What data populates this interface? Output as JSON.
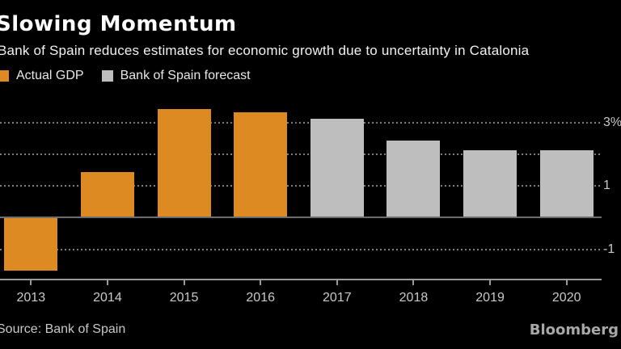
{
  "header": {
    "title": "Slowing Momentum",
    "subtitle": "Bank of Spain reduces estimates for economic growth due to uncertainty in Catalonia"
  },
  "legend": {
    "items": [
      {
        "label": "Actual GDP",
        "color": "#dc8a21"
      },
      {
        "label": "Bank of Spain forecast",
        "color": "#bebebe"
      }
    ]
  },
  "chart_data": {
    "type": "bar",
    "title": "Slowing Momentum",
    "subtitle": "Bank of Spain reduces estimates for economic growth due to uncertainty in Catalonia",
    "categories": [
      "2013",
      "2014",
      "2015",
      "2016",
      "2017",
      "2018",
      "2019",
      "2020"
    ],
    "series": [
      {
        "name": "Actual GDP",
        "color": "#dc8a21",
        "values": [
          -1.7,
          1.4,
          3.4,
          3.3,
          null,
          null,
          null,
          null
        ]
      },
      {
        "name": "Bank of Spain forecast",
        "color": "#bebebe",
        "values": [
          null,
          null,
          null,
          null,
          3.1,
          2.4,
          2.1,
          2.1
        ]
      }
    ],
    "unit": "percent",
    "ylim": [
      -2.2,
      3.8
    ],
    "yticks": [
      {
        "value": 3,
        "label": "3%"
      },
      {
        "value": 1,
        "label": "1"
      },
      {
        "value": -1,
        "label": "-1"
      }
    ],
    "gridline_values": [
      3,
      2,
      1,
      -1
    ],
    "grid": "horizontal-dotted",
    "legend_position": "top-left",
    "axis_label_side": "right"
  },
  "footer": {
    "source": "Source: Bank of Spain",
    "brand": "Bloomberg"
  }
}
